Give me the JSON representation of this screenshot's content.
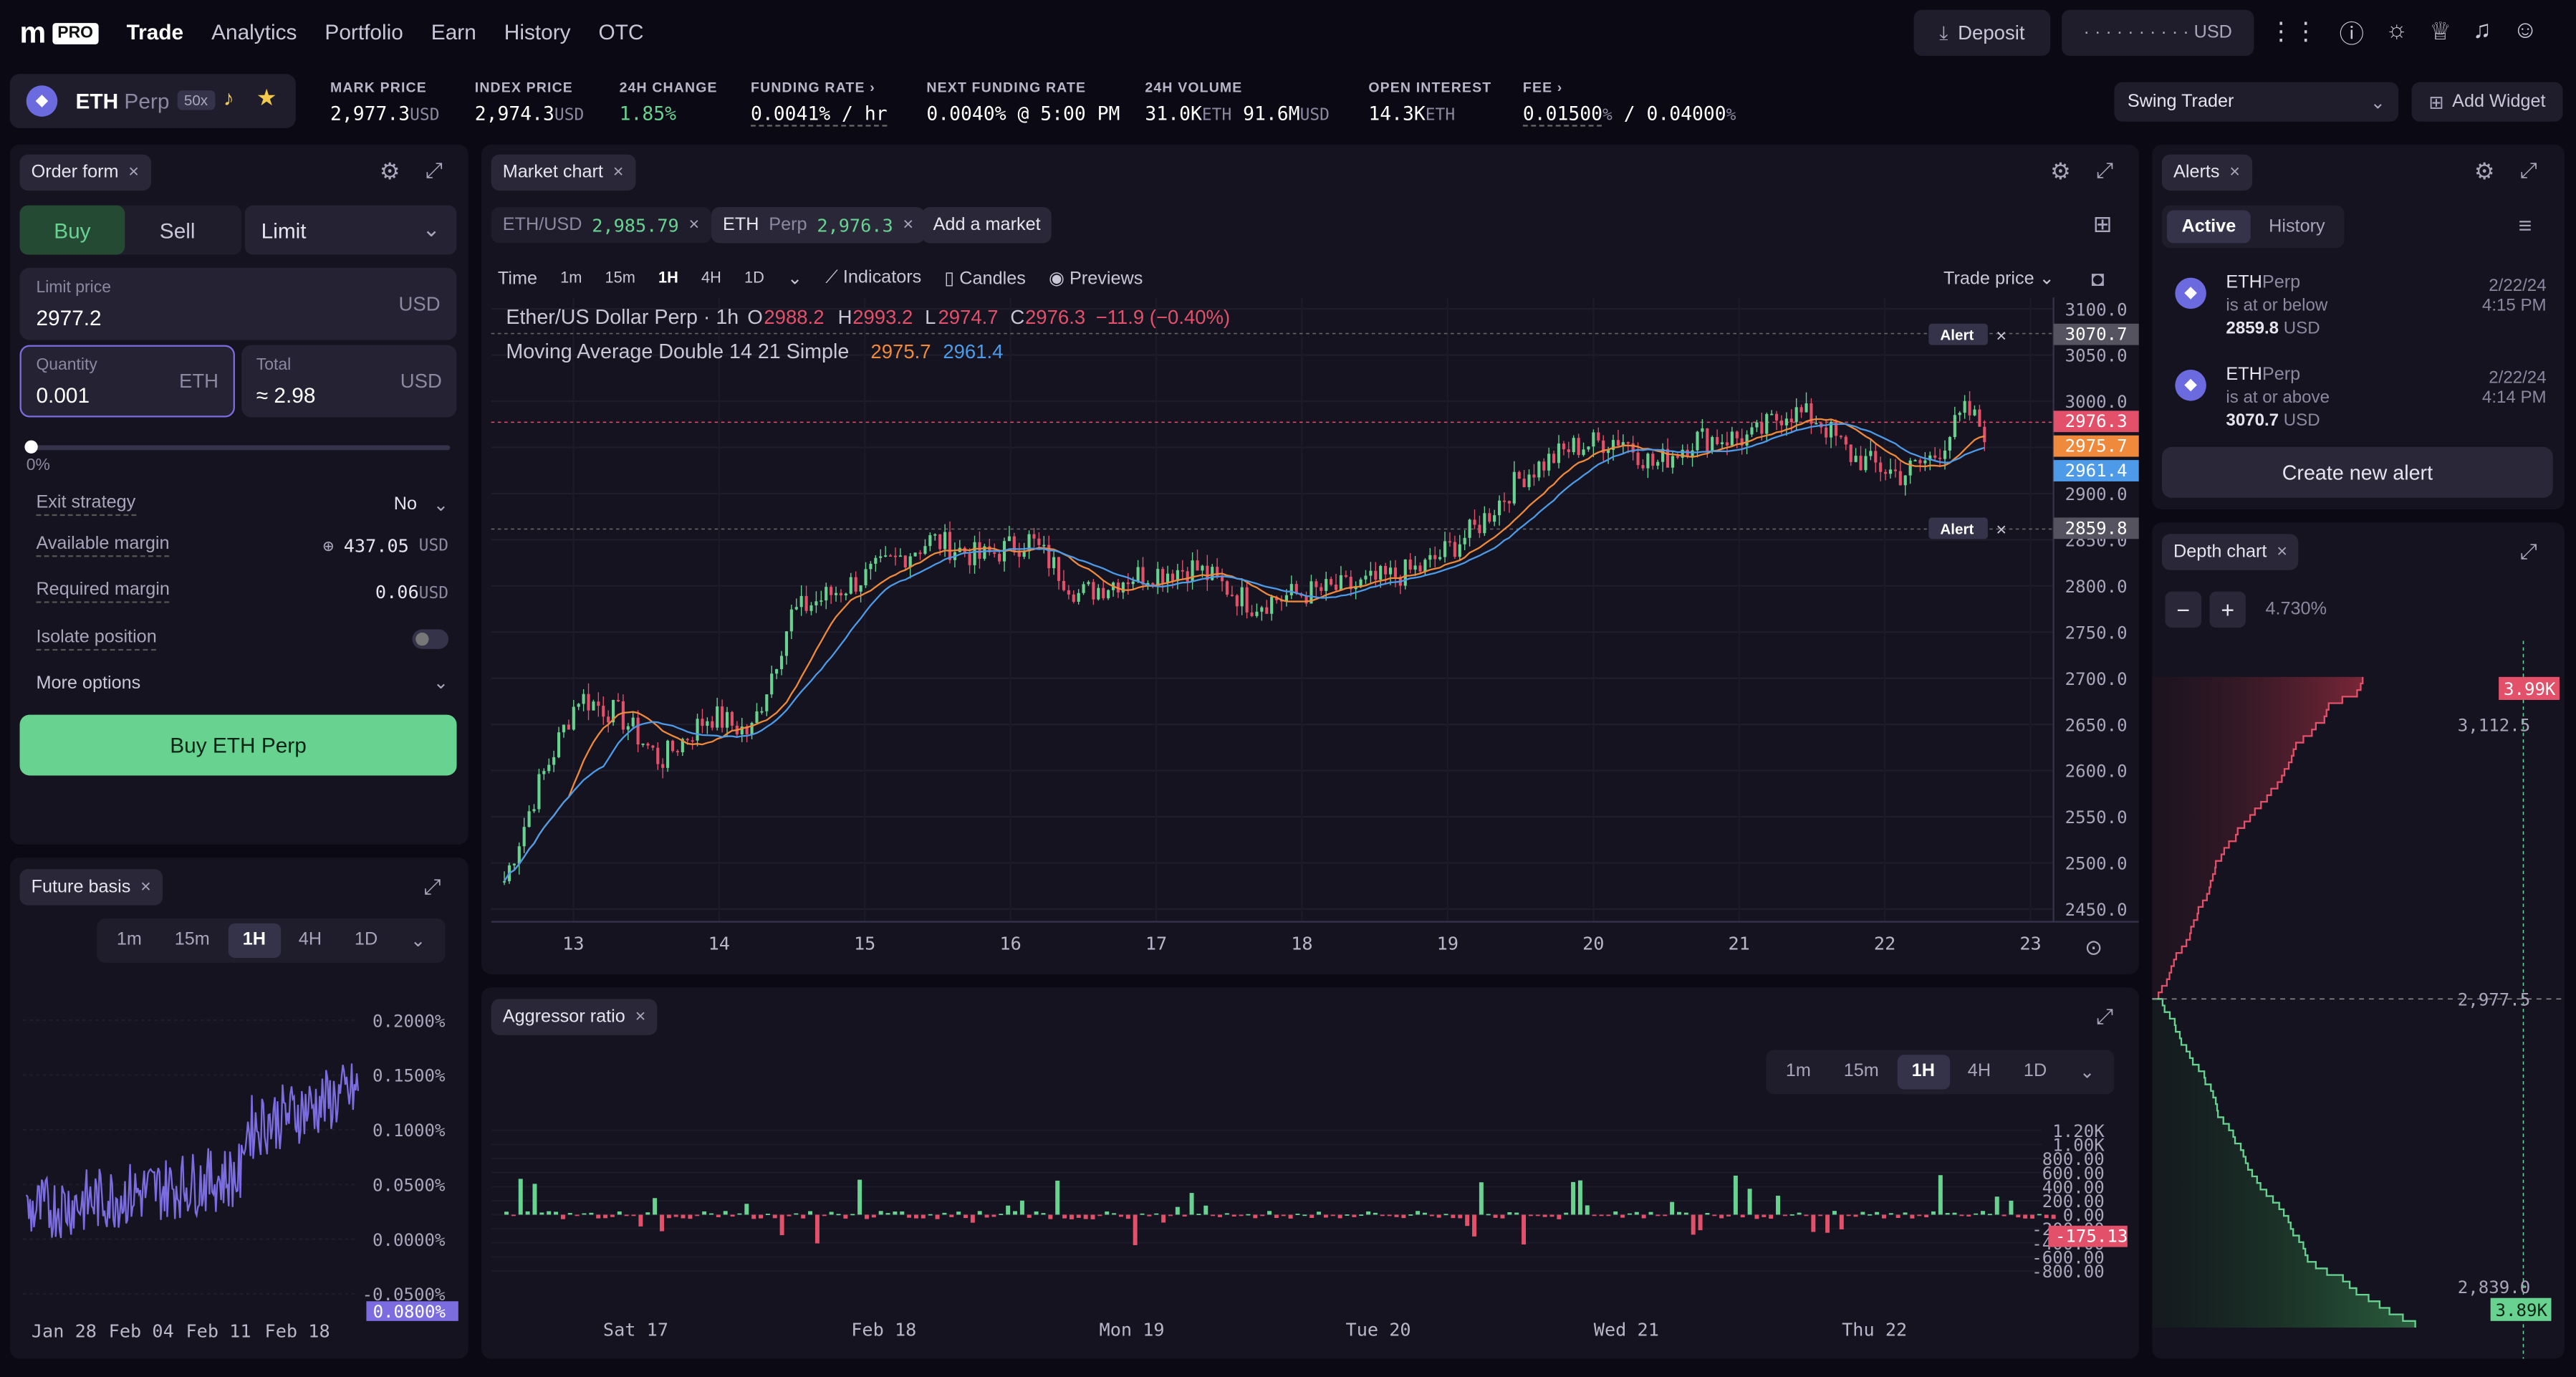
{
  "brand": {
    "logo": "m",
    "pro": "PRO"
  },
  "nav": [
    "Trade",
    "Analytics",
    "Portfolio",
    "Earn",
    "History",
    "OTC"
  ],
  "header": {
    "deposit": "Deposit",
    "balance": "· · · · · · · · · · USD"
  },
  "market": {
    "symbol": "ETH",
    "suffix": "Perp",
    "leverage": "50x"
  },
  "stats": [
    {
      "label": "MARK PRICE",
      "value": "2,977.3",
      "unit": "USD"
    },
    {
      "label": "INDEX PRICE",
      "value": "2,974.3",
      "unit": "USD"
    },
    {
      "label": "24H CHANGE",
      "value": "1.85%",
      "unit": ""
    },
    {
      "label": "FUNDING RATE",
      "value": "0.0041% / hr",
      "unit": ""
    },
    {
      "label": "NEXT FUNDING RATE",
      "value": "0.0040% @ 5:00 PM",
      "unit": ""
    },
    {
      "label": "24H VOLUME",
      "value": "31.0K",
      "unit": "ETH",
      "value2": "91.6M",
      "unit2": "USD"
    },
    {
      "label": "OPEN INTEREST",
      "value": "14.3K",
      "unit": "ETH"
    },
    {
      "label": "FEE",
      "value": "0.01500",
      "unit": "%",
      "value2": "/ 0.04000",
      "unit2": "%"
    }
  ],
  "layout_select": "Swing Trader",
  "add_widget": "Add Widget",
  "order": {
    "title": "Order form",
    "buy": "Buy",
    "sell": "Sell",
    "type": "Limit",
    "limit_label": "Limit price",
    "limit_value": "2977.2",
    "usd": "USD",
    "qty_label": "Quantity",
    "qty_value": "0.001",
    "eth": "ETH",
    "total_label": "Total",
    "total_value": "≈ 2.98",
    "pct": "0%",
    "exit_label": "Exit strategy",
    "exit_value": "No",
    "avail_label": "Available margin",
    "avail_value": "437.05",
    "req_label": "Required margin",
    "req_value": "0.06",
    "iso_label": "Isolate position",
    "more": "More options",
    "cta": "Buy ETH Perp"
  },
  "future": {
    "title": "Future basis",
    "tfs": [
      "1m",
      "15m",
      "1H",
      "4H",
      "1D"
    ],
    "yticks": [
      "0.2000%",
      "0.1500%",
      "0.1000%",
      "0.0500%",
      "0.0000%",
      "-0.0500%"
    ],
    "tag": "0.0800%",
    "xticks": [
      "Jan 28",
      "Feb 04",
      "Feb 11",
      "Feb 18"
    ]
  },
  "chart": {
    "title": "Market chart",
    "m1": "ETH/USD",
    "m1p": "2,985.79",
    "m2": "ETH",
    "m2s": "Perp",
    "m2p": "2,976.3",
    "add": "Add a market",
    "time": "Time",
    "tfs": [
      "1m",
      "15m",
      "1H",
      "4H",
      "1D"
    ],
    "indicators": "Indicators",
    "candles": "Candles",
    "previews": "Previews",
    "tradeprice": "Trade price",
    "legend1": "Ether/US Dollar Perp · 1h",
    "o": "O",
    "ov": "2988.2",
    "h": "H",
    "hv": "2993.2",
    "l": "L",
    "lv": "2974.7",
    "c": "C",
    "cv": "2976.3",
    "chg": "−11.9 (−0.40%)",
    "legend2": "Moving Average Double 14 21 Simple",
    "ma1": "2975.7",
    "ma2": "2961.4",
    "alert": "Alert",
    "yticks": [
      "3100.0",
      "3050.0",
      "3000.0",
      "2950.0",
      "2900.0",
      "2850.0",
      "2800.0",
      "2750.0",
      "2700.0",
      "2650.0",
      "2600.0",
      "2550.0",
      "2500.0",
      "2450.0"
    ],
    "tags": {
      "a1": "3070.7",
      "last": "2976.3",
      "ma1": "2975.7",
      "ma2": "2961.4",
      "a2": "2859.8"
    },
    "xticks": [
      "13",
      "14",
      "15",
      "16",
      "17",
      "18",
      "19",
      "20",
      "21",
      "22",
      "23"
    ]
  },
  "aggr": {
    "title": "Aggressor ratio",
    "tfs": [
      "1m",
      "15m",
      "1H",
      "4H",
      "1D"
    ],
    "yticks": [
      "1.20K",
      "1.00K",
      "800.00",
      "600.00",
      "400.00",
      "200.00",
      "0.00",
      "-200.00",
      "-400.00",
      "-600.00",
      "-800.00"
    ],
    "tag": "-175.13",
    "xticks": [
      "Sat 17",
      "Feb 18",
      "Mon 19",
      "Tue 20",
      "Wed 21",
      "Thu 22"
    ]
  },
  "alerts": {
    "title": "Alerts",
    "active": "Active",
    "history": "History",
    "items": [
      {
        "sym": "ETH",
        "suf": "Perp",
        "cond": "is at or below",
        "price": "2859.8",
        "unit": "USD",
        "date": "2/22/24",
        "time": "4:15 PM"
      },
      {
        "sym": "ETH",
        "suf": "Perp",
        "cond": "is at or above",
        "price": "3070.7",
        "unit": "USD",
        "date": "2/22/24",
        "time": "4:14 PM"
      }
    ],
    "create": "Create new alert"
  },
  "depth": {
    "title": "Depth chart",
    "pct": "4.730%",
    "p1": "3,112.5",
    "p2": "2,977.5",
    "p3": "2,839.0",
    "t1": "3.99K",
    "t2": "3.89K"
  },
  "colors": {
    "green": "#68d391",
    "red": "#e2506a",
    "accent": "#7b6ce0",
    "orange": "#ef8a3c",
    "blue": "#4d9be8"
  }
}
